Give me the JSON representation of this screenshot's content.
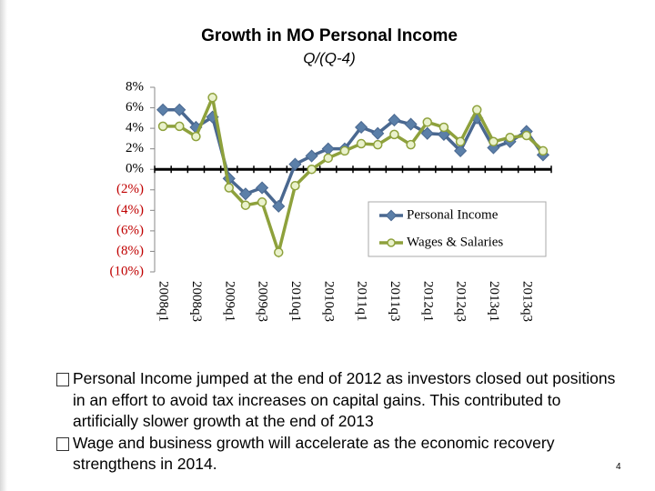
{
  "chart_data": {
    "type": "line",
    "title": "Growth in MO Personal Income",
    "subtitle": "Q/(Q-4)",
    "categories": [
      "2008q1",
      null,
      "2008q3",
      null,
      "2009q1",
      null,
      "2009q3",
      null,
      "2010q1",
      null,
      "2010q3",
      null,
      "2011q1",
      null,
      "2011q3",
      null,
      "2012q1",
      null,
      "2012q3",
      null,
      "2013q1",
      null,
      "2013q3",
      null
    ],
    "series": [
      {
        "name": "Personal Income",
        "color": "#4a6890",
        "marker_fill": "#5b7fa8",
        "values": [
          5.8,
          5.8,
          4.1,
          5.1,
          -0.9,
          -2.4,
          -1.8,
          -3.6,
          0.5,
          1.3,
          2.0,
          2.0,
          4.1,
          3.5,
          4.8,
          4.4,
          3.5,
          3.4,
          1.8,
          5.0,
          2.1,
          2.7,
          3.7,
          1.4
        ]
      },
      {
        "name": "Wages & Salaries",
        "color": "#8ea13c",
        "marker_fill": "#eaf2cc",
        "values": [
          4.2,
          4.2,
          3.2,
          7.0,
          -1.8,
          -3.5,
          -3.2,
          -8.1,
          -1.6,
          0.0,
          1.1,
          1.8,
          2.5,
          2.4,
          3.4,
          2.4,
          4.6,
          4.1,
          2.7,
          5.8,
          2.7,
          3.1,
          3.3,
          1.8
        ]
      }
    ],
    "ylim": [
      -10,
      8
    ],
    "yticks": [
      {
        "value": 8,
        "label": "8%"
      },
      {
        "value": 6,
        "label": "6%"
      },
      {
        "value": 4,
        "label": "4%"
      },
      {
        "value": 2,
        "label": "2%"
      },
      {
        "value": 0,
        "label": "0%"
      },
      {
        "value": -2,
        "label": "(2%)"
      },
      {
        "value": -4,
        "label": "(4%)"
      },
      {
        "value": -6,
        "label": "(6%)"
      },
      {
        "value": -8,
        "label": "(8%)"
      },
      {
        "value": -10,
        "label": "(10%)"
      }
    ],
    "grid": false,
    "legend": "right"
  },
  "bullets": [
    "Personal Income jumped at the end of 2012 as investors closed out positions in an effort to avoid tax increases on capital gains.  This contributed to artificially slower growth at the end of 2013",
    "Wage and business growth will accelerate as the economic recovery strengthens in 2014."
  ],
  "page_number": "4"
}
